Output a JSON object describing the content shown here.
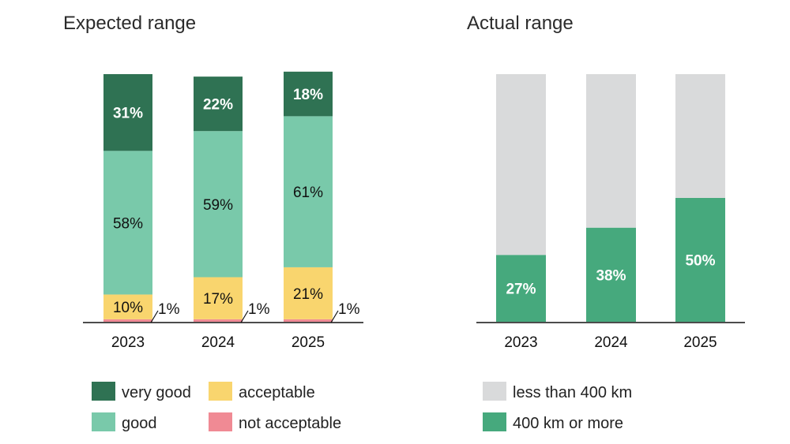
{
  "chart_data": [
    {
      "type": "bar",
      "stacked": true,
      "title": "Expected range",
      "categories": [
        "2023",
        "2024",
        "2025"
      ],
      "series": [
        {
          "name": "not acceptable",
          "color": "#f08a94",
          "values": [
            1,
            1,
            1
          ],
          "labels": [
            "1%",
            "1%",
            "1%"
          ]
        },
        {
          "name": "acceptable",
          "color": "#f9d56e",
          "values": [
            10,
            17,
            21
          ],
          "labels": [
            "10%",
            "17%",
            "21%"
          ]
        },
        {
          "name": "good",
          "color": "#79c9aa",
          "values": [
            58,
            59,
            61
          ],
          "labels": [
            "58%",
            "59%",
            "61%"
          ]
        },
        {
          "name": "very good",
          "color": "#2f7253",
          "values": [
            31,
            22,
            18
          ],
          "labels": [
            "31%",
            "22%",
            "18%"
          ]
        }
      ],
      "legend": [
        "very good",
        "acceptable",
        "good",
        "not acceptable"
      ],
      "ylim": [
        0,
        100
      ]
    },
    {
      "type": "bar",
      "stacked": true,
      "title": "Actual range",
      "categories": [
        "2023",
        "2024",
        "2025"
      ],
      "series": [
        {
          "name": "400 km or more",
          "color": "#46a97d",
          "values": [
            27,
            38,
            50
          ],
          "labels": [
            "27%",
            "38%",
            "50%"
          ]
        },
        {
          "name": "less than 400 km",
          "color": "#d9dadb",
          "values": [
            73,
            62,
            50
          ],
          "labels": [
            "",
            "",
            ""
          ]
        }
      ],
      "legend": [
        "less than 400 km",
        "400 km or more"
      ],
      "ylim": [
        0,
        100
      ]
    }
  ]
}
